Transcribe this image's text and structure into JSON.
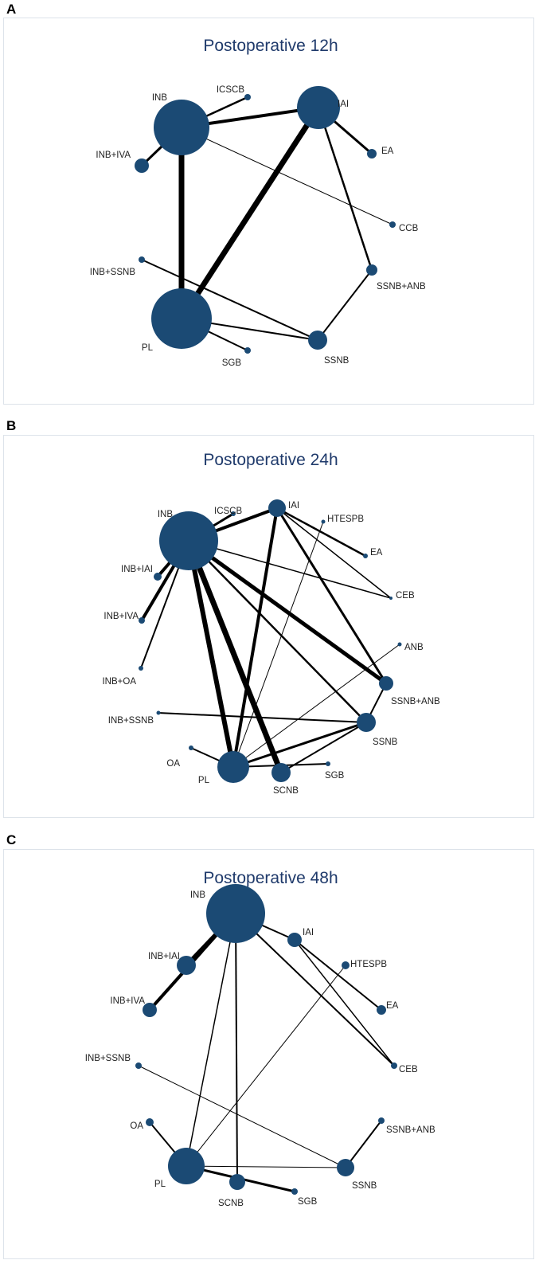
{
  "colors": {
    "node": "#1b4a74",
    "edge": "#000000",
    "title": "#1f3a6b"
  },
  "panels": [
    {
      "letter": "A",
      "title": "Postoperative 12h",
      "nodes": [
        {
          "id": "INB",
          "size": 35
        },
        {
          "id": "ICSCB",
          "size": 4
        },
        {
          "id": "IAI",
          "size": 27
        },
        {
          "id": "EA",
          "size": 6
        },
        {
          "id": "CCB",
          "size": 4
        },
        {
          "id": "SSNB+ANB",
          "size": 7
        },
        {
          "id": "SSNB",
          "size": 12
        },
        {
          "id": "SGB",
          "size": 4
        },
        {
          "id": "PL",
          "size": 38
        },
        {
          "id": "INB+SSNB",
          "size": 4
        },
        {
          "id": "INB+IVA",
          "size": 9
        }
      ],
      "edges": [
        [
          "INB",
          "ICSCB",
          2.5
        ],
        [
          "INB",
          "IAI",
          4
        ],
        [
          "INB",
          "INB+IVA",
          3
        ],
        [
          "INB",
          "PL",
          7
        ],
        [
          "INB",
          "CCB",
          1
        ],
        [
          "IAI",
          "PL",
          7
        ],
        [
          "IAI",
          "EA",
          3
        ],
        [
          "IAI",
          "SSNB+ANB",
          2.5
        ],
        [
          "SSNB+ANB",
          "SSNB",
          2
        ],
        [
          "INB+SSNB",
          "SSNB",
          2
        ],
        [
          "PL",
          "SSNB",
          2
        ],
        [
          "PL",
          "SGB",
          2
        ]
      ]
    },
    {
      "letter": "B",
      "title": "Postoperative 24h",
      "nodes": [
        {
          "id": "INB",
          "size": 37
        },
        {
          "id": "ICSCB",
          "size": 3
        },
        {
          "id": "IAI",
          "size": 11
        },
        {
          "id": "HTESPB",
          "size": 2.5
        },
        {
          "id": "EA",
          "size": 3
        },
        {
          "id": "CEB",
          "size": 2
        },
        {
          "id": "ANB",
          "size": 2.5
        },
        {
          "id": "SSNB+ANB",
          "size": 9
        },
        {
          "id": "SSNB",
          "size": 12
        },
        {
          "id": "SGB",
          "size": 3
        },
        {
          "id": "SCNB",
          "size": 12
        },
        {
          "id": "PL",
          "size": 20
        },
        {
          "id": "OA",
          "size": 3
        },
        {
          "id": "INB+SSNB",
          "size": 2.5
        },
        {
          "id": "INB+OA",
          "size": 3
        },
        {
          "id": "INB+IVA",
          "size": 4
        },
        {
          "id": "INB+IAI",
          "size": 5
        }
      ],
      "edges": [
        [
          "INB",
          "ICSCB",
          3
        ],
        [
          "INB",
          "IAI",
          4
        ],
        [
          "INB",
          "INB+IAI",
          4
        ],
        [
          "INB",
          "INB+IVA",
          4
        ],
        [
          "INB",
          "INB+OA",
          2
        ],
        [
          "INB",
          "PL",
          6
        ],
        [
          "INB",
          "SCNB",
          7
        ],
        [
          "INB",
          "SSNB",
          2.5
        ],
        [
          "INB",
          "SSNB+ANB",
          5
        ],
        [
          "INB",
          "CEB",
          1.5
        ],
        [
          "IAI",
          "PL",
          4
        ],
        [
          "IAI",
          "EA",
          2.5
        ],
        [
          "IAI",
          "CEB",
          1.5
        ],
        [
          "IAI",
          "SSNB+ANB",
          3
        ],
        [
          "HTESPB",
          "PL",
          1
        ],
        [
          "ANB",
          "PL",
          1
        ],
        [
          "INB+SSNB",
          "SSNB",
          2
        ],
        [
          "PL",
          "SSNB",
          3
        ],
        [
          "SCNB",
          "SSNB",
          2
        ],
        [
          "PL",
          "SGB",
          2
        ],
        [
          "OA",
          "PL",
          2
        ],
        [
          "SSNB+ANB",
          "SSNB",
          2
        ]
      ]
    },
    {
      "letter": "C",
      "title": "Postoperative 48h",
      "nodes": [
        {
          "id": "INB",
          "size": 37
        },
        {
          "id": "IAI",
          "size": 9
        },
        {
          "id": "HTESPB",
          "size": 5
        },
        {
          "id": "EA",
          "size": 6
        },
        {
          "id": "CEB",
          "size": 4
        },
        {
          "id": "SSNB+ANB",
          "size": 4
        },
        {
          "id": "SSNB",
          "size": 11
        },
        {
          "id": "SGB",
          "size": 4
        },
        {
          "id": "SCNB",
          "size": 10
        },
        {
          "id": "PL",
          "size": 23
        },
        {
          "id": "OA",
          "size": 5
        },
        {
          "id": "INB+SSNB",
          "size": 4
        },
        {
          "id": "INB+IVA",
          "size": 9
        },
        {
          "id": "INB+IAI",
          "size": 12
        }
      ],
      "edges": [
        [
          "INB",
          "IAI",
          2
        ],
        [
          "INB",
          "INB+IAI",
          5
        ],
        [
          "INB",
          "INB+IVA",
          4
        ],
        [
          "INB",
          "PL",
          1.5
        ],
        [
          "INB",
          "SCNB",
          2
        ],
        [
          "INB",
          "CEB",
          2
        ],
        [
          "IAI",
          "EA",
          2
        ],
        [
          "IAI",
          "CEB",
          1.5
        ],
        [
          "HTESPB",
          "PL",
          1
        ],
        [
          "PL",
          "SSNB",
          1
        ],
        [
          "INB+SSNB",
          "SSNB",
          1
        ],
        [
          "SSNB+ANB",
          "SSNB",
          2
        ],
        [
          "PL",
          "SGB",
          3
        ],
        [
          "PL",
          "OA",
          2
        ]
      ]
    }
  ]
}
